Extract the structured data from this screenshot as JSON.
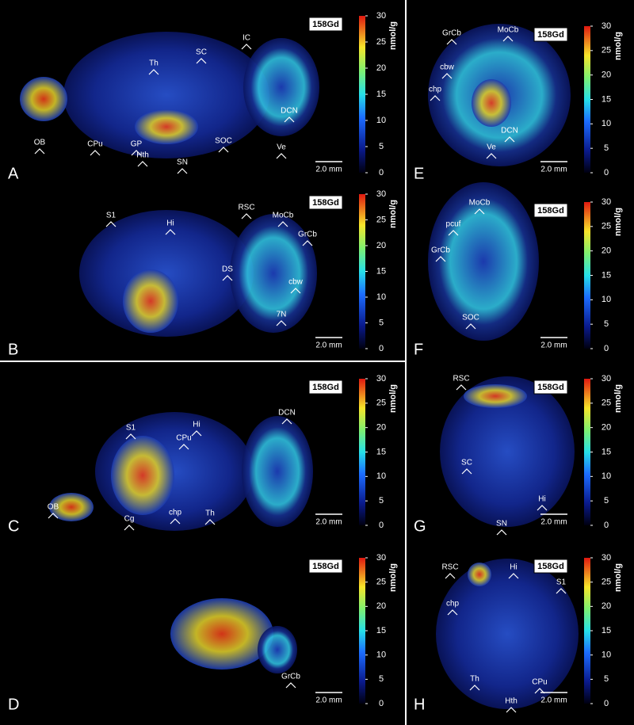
{
  "panels": [
    {
      "letter": "A",
      "isotope": "158Gd",
      "unit": "nmol/g",
      "scale_bar": "2.0 mm",
      "colorbar": {
        "range": [
          0,
          30
        ],
        "ticks": [
          0,
          5,
          10,
          15,
          20,
          25,
          30
        ]
      },
      "annotations": [
        "IC",
        "SC",
        "Th",
        "OB",
        "CPu",
        "GP",
        "Hth",
        "SN",
        "SOC",
        "DCN",
        "Ve"
      ]
    },
    {
      "letter": "B",
      "isotope": "158Gd",
      "unit": "nmol/g",
      "scale_bar": "2.0 mm",
      "colorbar": {
        "range": [
          0,
          30
        ],
        "ticks": [
          0,
          5,
          10,
          15,
          20,
          25,
          30
        ]
      },
      "annotations": [
        "S1",
        "Hi",
        "RSC",
        "MoCb",
        "GrCb",
        "DS",
        "cbw",
        "7N"
      ]
    },
    {
      "letter": "C",
      "isotope": "158Gd",
      "unit": "nmol/g",
      "scale_bar": "2.0 mm",
      "colorbar": {
        "range": [
          0,
          30
        ],
        "ticks": [
          0,
          5,
          10,
          15,
          20,
          25,
          30
        ]
      },
      "annotations": [
        "S1",
        "Hi",
        "CPu",
        "DCN",
        "OB",
        "Cg",
        "chp",
        "Th"
      ]
    },
    {
      "letter": "D",
      "isotope": "158Gd",
      "unit": "nmol/g",
      "scale_bar": "2.0 mm",
      "colorbar": {
        "range": [
          0,
          30
        ],
        "ticks": [
          0,
          5,
          10,
          15,
          20,
          25,
          30
        ]
      },
      "annotations": [
        "GrCb"
      ]
    },
    {
      "letter": "E",
      "isotope": "158Gd",
      "unit": "nmol/g",
      "scale_bar": "2.0 mm",
      "colorbar": {
        "range": [
          0,
          30
        ],
        "ticks": [
          0,
          5,
          10,
          15,
          20,
          25,
          30
        ]
      },
      "annotations": [
        "GrCb",
        "MoCb",
        "cbw",
        "chp",
        "DCN",
        "Ve"
      ]
    },
    {
      "letter": "F",
      "isotope": "158Gd",
      "unit": "nmol/g",
      "scale_bar": "2.0 mm",
      "colorbar": {
        "range": [
          0,
          30
        ],
        "ticks": [
          0,
          5,
          10,
          15,
          20,
          25,
          30
        ]
      },
      "annotations": [
        "MoCb",
        "pcuf",
        "GrCb",
        "SOC"
      ]
    },
    {
      "letter": "G",
      "isotope": "158Gd",
      "unit": "nmol/g",
      "scale_bar": "2.0 mm",
      "colorbar": {
        "range": [
          0,
          30
        ],
        "ticks": [
          0,
          5,
          10,
          15,
          20,
          25,
          30
        ]
      },
      "annotations": [
        "RSC",
        "SC",
        "Hi",
        "SN"
      ]
    },
    {
      "letter": "H",
      "isotope": "158Gd",
      "unit": "nmol/g",
      "scale_bar": "2.0 mm",
      "colorbar": {
        "range": [
          0,
          30
        ],
        "ticks": [
          0,
          5,
          10,
          15,
          20,
          25,
          30
        ]
      },
      "annotations": [
        "RSC",
        "Hi",
        "S1",
        "chp",
        "Th",
        "CPu",
        "Hth"
      ]
    }
  ]
}
